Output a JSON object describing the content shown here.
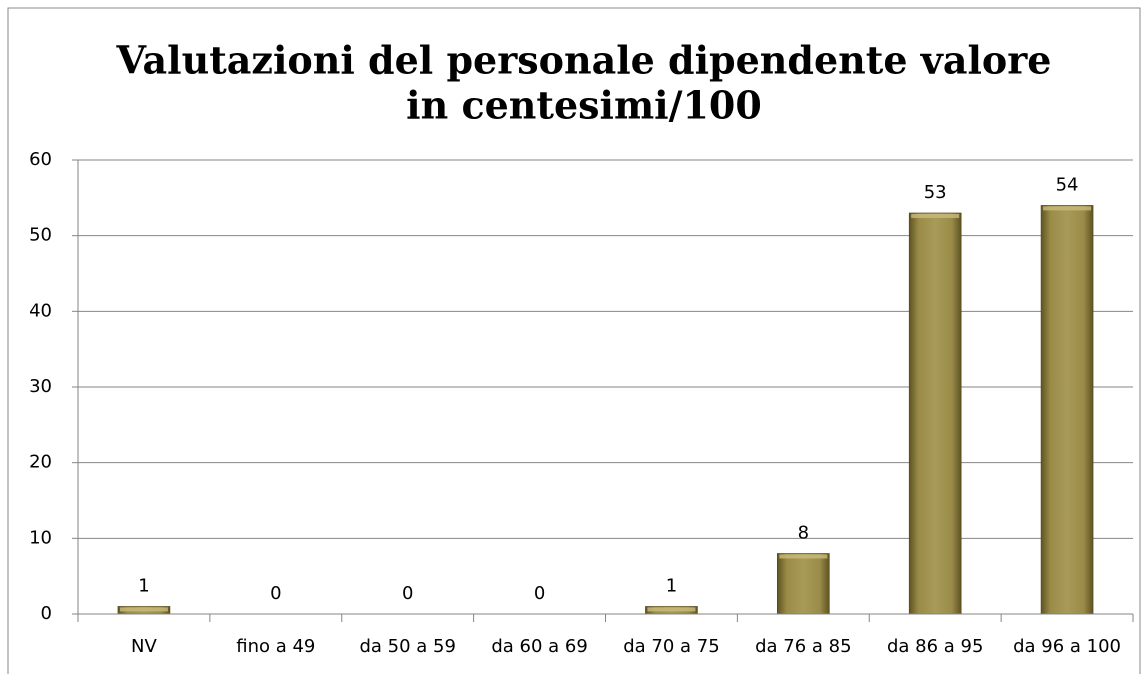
{
  "chart_data": {
    "type": "bar",
    "title": [
      "Valutazioni del personale dipendente valore",
      "in centesimi/100"
    ],
    "categories": [
      "NV",
      "fino a 49",
      "da 50 a 59",
      "da 60 a 69",
      "da 70 a 75",
      "da 76 a 85",
      "da 86 a 95",
      "da 96 a 100"
    ],
    "values": [
      1,
      0,
      0,
      0,
      1,
      8,
      53,
      54
    ],
    "color": "#948542",
    "ylim": [
      0,
      60
    ],
    "yticks": [
      0,
      10,
      20,
      30,
      40,
      50,
      60
    ],
    "grid": true
  }
}
